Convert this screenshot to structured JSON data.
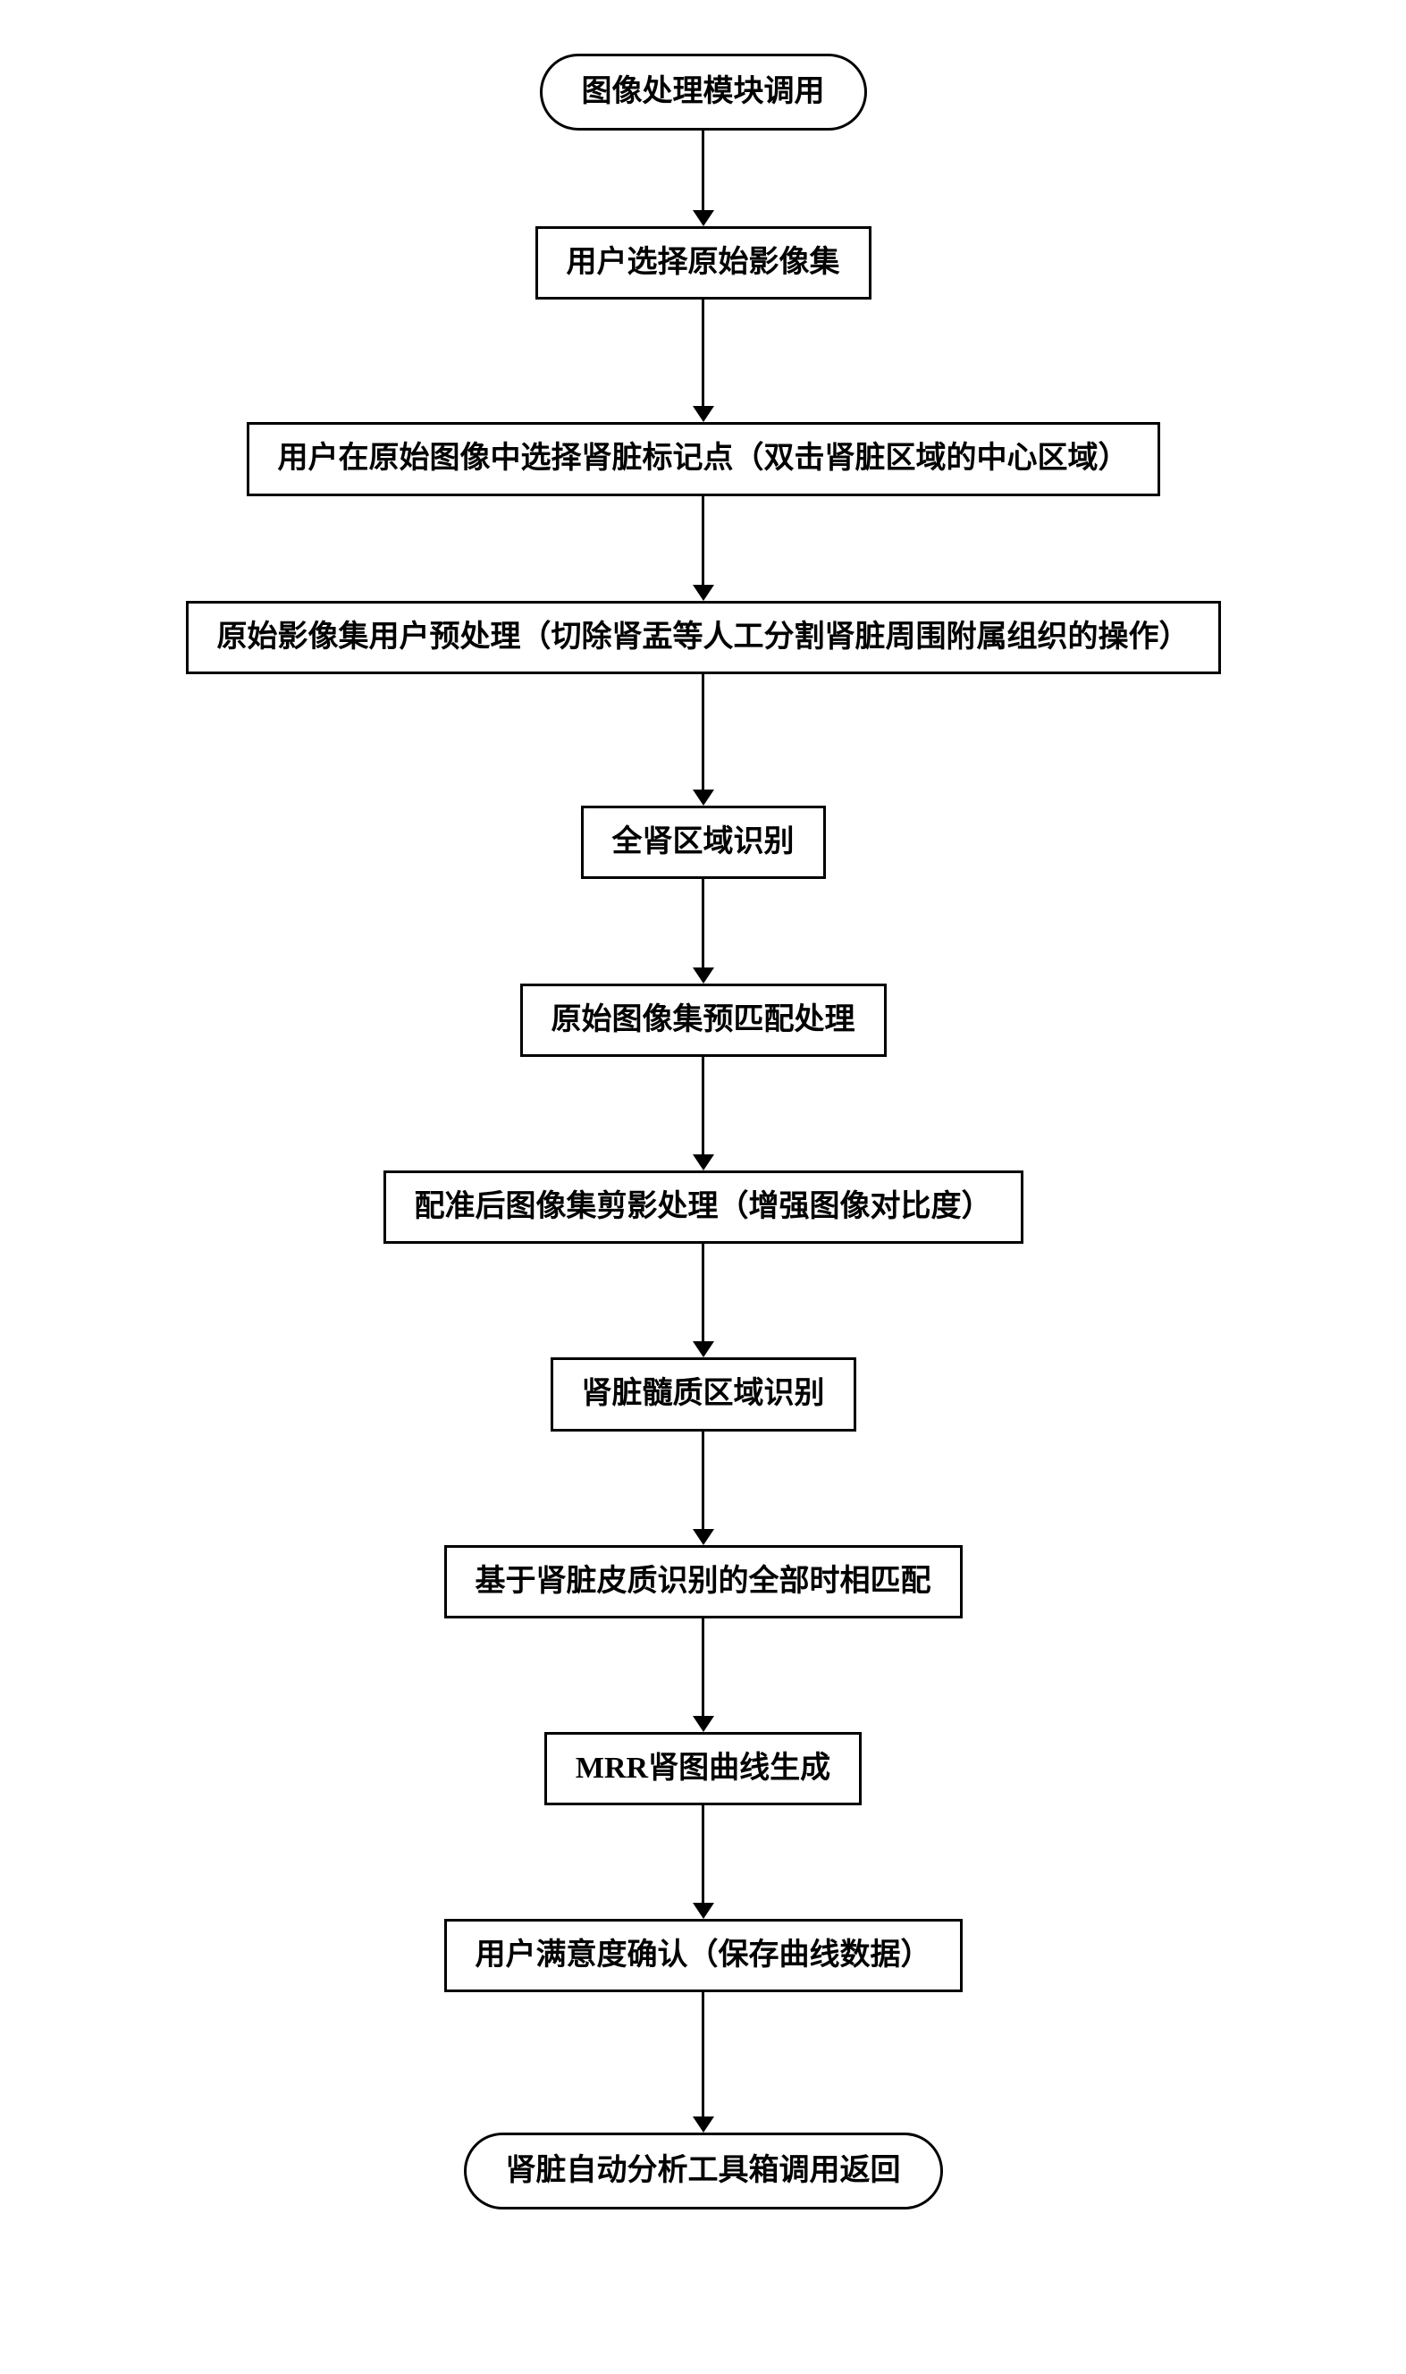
{
  "flowchart": {
    "type": "flowchart",
    "direction": "top-down",
    "background_color": "#ffffff",
    "node_border_color": "#000000",
    "node_border_width": 3,
    "node_fill": "#ffffff",
    "text_color": "#000000",
    "font_family": "SimSun",
    "font_size": 34,
    "font_weight": "bold",
    "arrow_color": "#000000",
    "arrow_line_width": 3,
    "arrow_head_size": 18,
    "nodes": [
      {
        "id": "n0",
        "shape": "terminal",
        "label": "图像处理模块调用",
        "arrow_len": 90
      },
      {
        "id": "n1",
        "shape": "process",
        "label": "用户选择原始影像集",
        "arrow_len": 120
      },
      {
        "id": "n2",
        "shape": "process",
        "label": "用户在原始图像中选择肾脏标记点（双击肾脏区域的中心区域）",
        "arrow_len": 100
      },
      {
        "id": "n3",
        "shape": "process",
        "label": "原始影像集用户预处理（切除肾盂等人工分割肾脏周围附属组织的操作）",
        "arrow_len": 130
      },
      {
        "id": "n4",
        "shape": "process",
        "label": "全肾区域识别",
        "arrow_len": 100
      },
      {
        "id": "n5",
        "shape": "process",
        "label": "原始图像集预匹配处理",
        "arrow_len": 110
      },
      {
        "id": "n6",
        "shape": "process",
        "label": "配准后图像集剪影处理（增强图像对比度）",
        "arrow_len": 110
      },
      {
        "id": "n7",
        "shape": "process",
        "label": "肾脏髓质区域识别",
        "arrow_len": 110
      },
      {
        "id": "n8",
        "shape": "process",
        "label": "基于肾脏皮质识别的全部时相匹配",
        "arrow_len": 110
      },
      {
        "id": "n9",
        "shape": "process",
        "label": "MRR肾图曲线生成",
        "arrow_len": 110
      },
      {
        "id": "n10",
        "shape": "process",
        "label": "用户满意度确认（保存曲线数据）",
        "arrow_len": 140
      },
      {
        "id": "n11",
        "shape": "terminal",
        "label": "肾脏自动分析工具箱调用返回",
        "arrow_len": 0
      }
    ]
  }
}
